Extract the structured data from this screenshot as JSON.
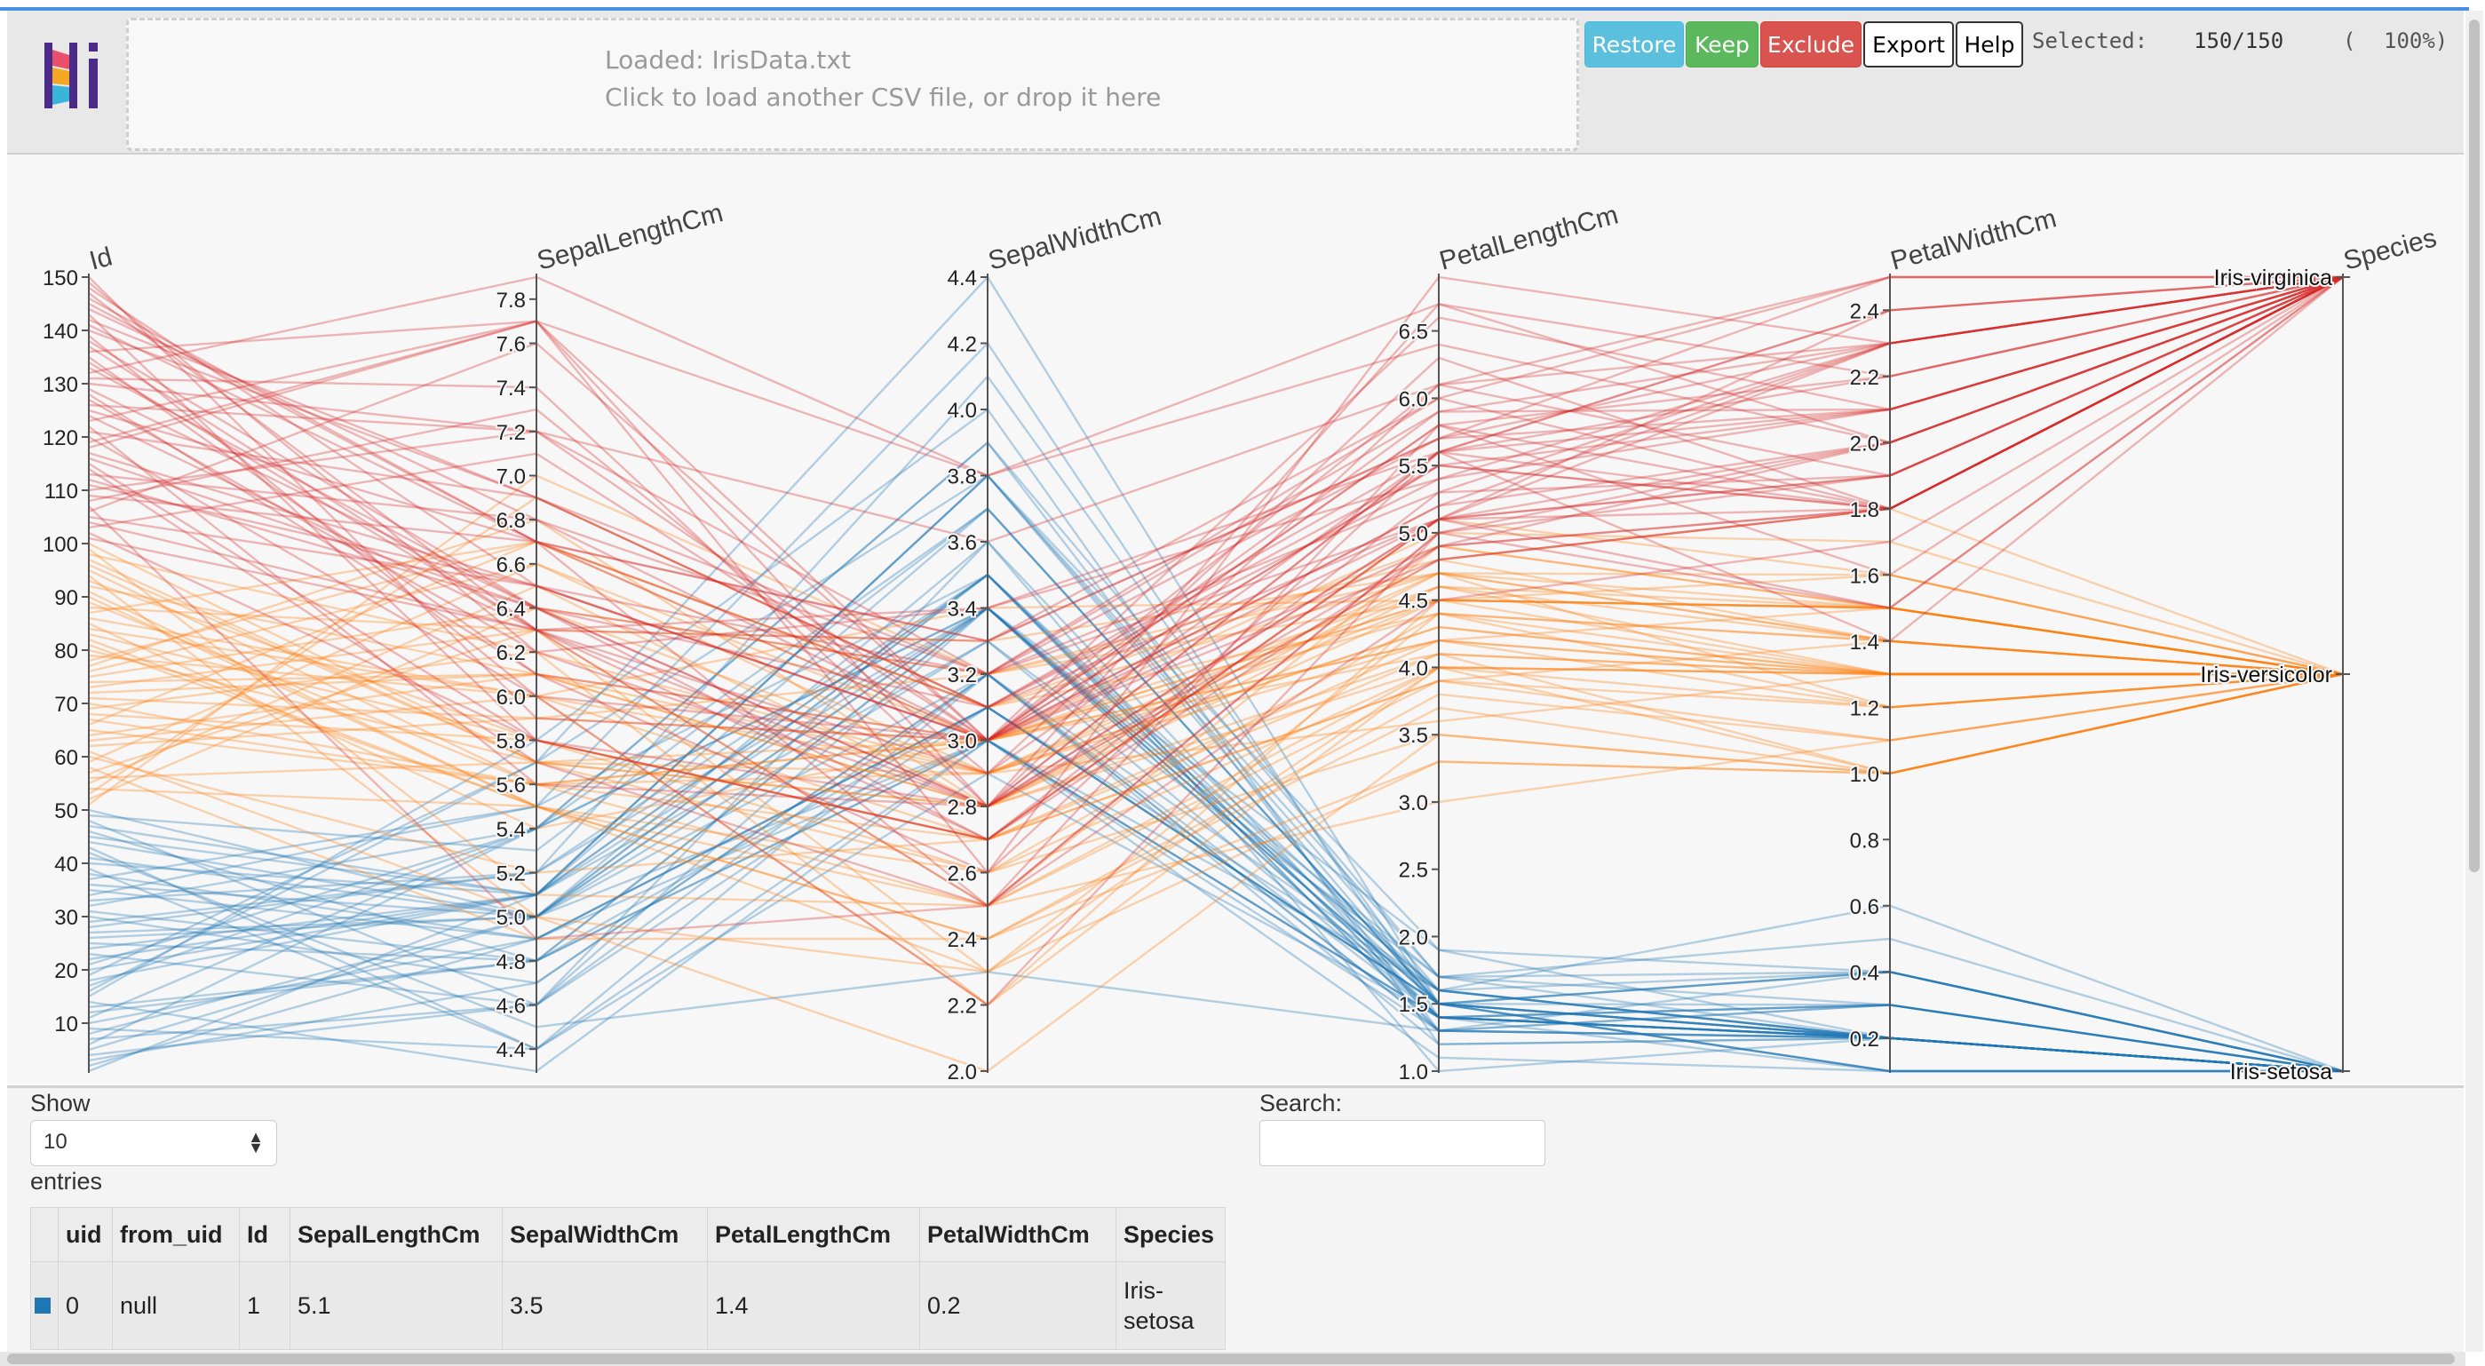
{
  "dropzone": {
    "loaded": "Loaded: IrisData.txt",
    "hint": "Click to load another CSV file, or drop it here"
  },
  "toolbar": {
    "restore": "Restore",
    "keep": "Keep",
    "exclude": "Exclude",
    "export": "Export",
    "help": "Help"
  },
  "selection": {
    "label": "Selected:",
    "count": "150/150",
    "open": "(",
    "pct": "100%)"
  },
  "colors": {
    "setosa": "#1f77b4",
    "versicolor": "#ff7f0e",
    "virginica": "#d62728"
  },
  "chart_data": {
    "type": "parallel-coordinates",
    "axes": [
      {
        "name": "Id",
        "min": 1,
        "max": 150,
        "ticks": [
          10,
          20,
          30,
          40,
          50,
          60,
          70,
          80,
          90,
          100,
          110,
          120,
          130,
          140,
          150
        ],
        "tick_labels": [
          "10",
          "20",
          "30",
          "40",
          "50",
          "60",
          "70",
          "80",
          "90",
          "100",
          "110",
          "120",
          "130",
          "140",
          "150"
        ]
      },
      {
        "name": "SepalLengthCm",
        "min": 4.3,
        "max": 7.9,
        "ticks": [
          4.4,
          4.6,
          4.8,
          5.0,
          5.2,
          5.4,
          5.6,
          5.8,
          6.0,
          6.2,
          6.4,
          6.6,
          6.8,
          7.0,
          7.2,
          7.4,
          7.6,
          7.8
        ],
        "tick_labels": [
          "4.4",
          "4.6",
          "4.8",
          "5.0",
          "5.2",
          "5.4",
          "5.6",
          "5.8",
          "6.0",
          "6.2",
          "6.4",
          "6.6",
          "6.8",
          "7.0",
          "7.2",
          "7.4",
          "7.6",
          "7.8"
        ]
      },
      {
        "name": "SepalWidthCm",
        "min": 2.0,
        "max": 4.4,
        "ticks": [
          2.0,
          2.2,
          2.4,
          2.6,
          2.8,
          3.0,
          3.2,
          3.4,
          3.6,
          3.8,
          4.0,
          4.2,
          4.4
        ],
        "tick_labels": [
          "2.0",
          "2.2",
          "2.4",
          "2.6",
          "2.8",
          "3.0",
          "3.2",
          "3.4",
          "3.6",
          "3.8",
          "4.0",
          "4.2",
          "4.4"
        ]
      },
      {
        "name": "PetalLengthCm",
        "min": 1.0,
        "max": 6.9,
        "ticks": [
          1.0,
          1.5,
          2.0,
          2.5,
          3.0,
          3.5,
          4.0,
          4.5,
          5.0,
          5.5,
          6.0,
          6.5
        ],
        "tick_labels": [
          "1.0",
          "1.5",
          "2.0",
          "2.5",
          "3.0",
          "3.5",
          "4.0",
          "4.5",
          "5.0",
          "5.5",
          "6.0",
          "6.5"
        ]
      },
      {
        "name": "PetalWidthCm",
        "min": 0.1,
        "max": 2.5,
        "ticks": [
          0.2,
          0.4,
          0.6,
          0.8,
          1.0,
          1.2,
          1.4,
          1.6,
          1.8,
          2.0,
          2.2,
          2.4
        ],
        "tick_labels": [
          "0.2",
          "0.4",
          "0.6",
          "0.8",
          "1.0",
          "1.2",
          "1.4",
          "1.6",
          "1.8",
          "2.0",
          "2.2",
          "2.4"
        ]
      },
      {
        "name": "Species",
        "categorical": true,
        "categories": [
          "Iris-setosa",
          "Iris-versicolor",
          "Iris-virginica"
        ]
      }
    ],
    "series": [
      {
        "name": "Iris-setosa",
        "color": "#1f77b4",
        "id_range": [
          1,
          50
        ],
        "sepal_length": [
          5.1,
          4.9,
          4.7,
          4.6,
          5.0,
          5.4,
          4.6,
          5.0,
          4.4,
          4.9,
          5.4,
          4.8,
          4.8,
          4.3,
          5.8,
          5.7,
          5.4,
          5.1,
          5.7,
          5.1,
          5.4,
          5.1,
          4.6,
          5.1,
          4.8,
          5.0,
          5.0,
          5.2,
          5.2,
          4.7,
          4.8,
          5.4,
          5.2,
          5.5,
          4.9,
          5.0,
          5.5,
          4.9,
          4.4,
          5.1,
          5.0,
          4.5,
          4.4,
          5.0,
          5.1,
          4.8,
          5.1,
          4.6,
          5.3,
          5.0
        ],
        "sepal_width": [
          3.5,
          3.0,
          3.2,
          3.1,
          3.6,
          3.9,
          3.4,
          3.4,
          2.9,
          3.1,
          3.7,
          3.4,
          3.0,
          3.0,
          4.0,
          4.4,
          3.9,
          3.5,
          3.8,
          3.8,
          3.4,
          3.7,
          3.6,
          3.3,
          3.4,
          3.0,
          3.4,
          3.5,
          3.4,
          3.2,
          3.1,
          3.4,
          4.1,
          4.2,
          3.1,
          3.2,
          3.5,
          3.1,
          3.0,
          3.4,
          3.5,
          2.3,
          3.2,
          3.5,
          3.8,
          3.0,
          3.8,
          3.2,
          3.7,
          3.3
        ],
        "petal_length": [
          1.4,
          1.4,
          1.3,
          1.5,
          1.4,
          1.7,
          1.4,
          1.5,
          1.4,
          1.5,
          1.5,
          1.6,
          1.4,
          1.1,
          1.2,
          1.5,
          1.3,
          1.4,
          1.7,
          1.5,
          1.7,
          1.5,
          1.0,
          1.7,
          1.9,
          1.6,
          1.6,
          1.5,
          1.4,
          1.6,
          1.6,
          1.5,
          1.5,
          1.4,
          1.5,
          1.2,
          1.3,
          1.5,
          1.3,
          1.5,
          1.3,
          1.3,
          1.3,
          1.6,
          1.9,
          1.4,
          1.6,
          1.4,
          1.5,
          1.4
        ],
        "petal_width": [
          0.2,
          0.2,
          0.2,
          0.2,
          0.2,
          0.4,
          0.3,
          0.2,
          0.2,
          0.1,
          0.2,
          0.2,
          0.1,
          0.1,
          0.2,
          0.4,
          0.4,
          0.3,
          0.3,
          0.3,
          0.2,
          0.4,
          0.2,
          0.5,
          0.2,
          0.2,
          0.4,
          0.2,
          0.2,
          0.2,
          0.2,
          0.4,
          0.1,
          0.2,
          0.1,
          0.2,
          0.2,
          0.1,
          0.2,
          0.2,
          0.3,
          0.3,
          0.2,
          0.6,
          0.4,
          0.3,
          0.2,
          0.2,
          0.2,
          0.2
        ]
      },
      {
        "name": "Iris-versicolor",
        "color": "#ff7f0e",
        "id_range": [
          51,
          100
        ],
        "sepal_length": [
          7.0,
          6.4,
          6.9,
          5.5,
          6.5,
          5.7,
          6.3,
          4.9,
          6.6,
          5.2,
          5.0,
          5.9,
          6.0,
          6.1,
          5.6,
          6.7,
          5.6,
          5.8,
          6.2,
          5.6,
          5.9,
          6.1,
          6.3,
          6.1,
          6.4,
          6.6,
          6.8,
          6.7,
          6.0,
          5.7,
          5.5,
          5.5,
          5.8,
          6.0,
          5.4,
          6.0,
          6.7,
          6.3,
          5.6,
          5.5,
          5.5,
          6.1,
          5.8,
          5.0,
          5.6,
          5.7,
          5.7,
          6.2,
          5.1,
          5.7
        ],
        "sepal_width": [
          3.2,
          3.2,
          3.1,
          2.3,
          2.8,
          2.8,
          3.3,
          2.4,
          2.9,
          2.7,
          2.0,
          3.0,
          2.2,
          2.9,
          2.9,
          3.1,
          3.0,
          2.7,
          2.2,
          2.5,
          3.2,
          2.8,
          2.5,
          2.8,
          2.9,
          3.0,
          2.8,
          3.0,
          2.9,
          2.6,
          2.4,
          2.4,
          2.7,
          2.7,
          3.0,
          3.4,
          3.1,
          2.3,
          3.0,
          2.5,
          2.6,
          3.0,
          2.6,
          2.3,
          2.7,
          3.0,
          2.9,
          2.9,
          2.5,
          2.8
        ],
        "petal_length": [
          4.7,
          4.5,
          4.9,
          4.0,
          4.6,
          4.5,
          4.7,
          3.3,
          4.6,
          3.9,
          3.5,
          4.2,
          4.0,
          4.7,
          3.6,
          4.4,
          4.5,
          4.1,
          4.5,
          3.9,
          4.8,
          4.0,
          4.9,
          4.7,
          4.3,
          4.4,
          4.8,
          5.0,
          4.5,
          3.5,
          3.8,
          3.7,
          3.9,
          5.1,
          4.5,
          4.5,
          4.7,
          4.4,
          4.1,
          4.0,
          4.4,
          4.6,
          4.0,
          3.3,
          4.2,
          4.2,
          4.2,
          4.3,
          3.0,
          4.1
        ],
        "petal_width": [
          1.4,
          1.5,
          1.5,
          1.3,
          1.5,
          1.3,
          1.6,
          1.0,
          1.3,
          1.4,
          1.0,
          1.5,
          1.0,
          1.4,
          1.3,
          1.4,
          1.5,
          1.0,
          1.5,
          1.1,
          1.8,
          1.3,
          1.5,
          1.2,
          1.3,
          1.4,
          1.4,
          1.7,
          1.5,
          1.0,
          1.1,
          1.0,
          1.2,
          1.6,
          1.5,
          1.6,
          1.5,
          1.3,
          1.3,
          1.3,
          1.2,
          1.4,
          1.2,
          1.0,
          1.3,
          1.2,
          1.3,
          1.3,
          1.1,
          1.3
        ]
      },
      {
        "name": "Iris-virginica",
        "color": "#d62728",
        "id_range": [
          101,
          150
        ],
        "sepal_length": [
          6.3,
          5.8,
          7.1,
          6.3,
          6.5,
          7.6,
          4.9,
          7.3,
          6.7,
          7.2,
          6.5,
          6.4,
          6.8,
          5.7,
          5.8,
          6.4,
          6.5,
          7.7,
          7.7,
          6.0,
          6.9,
          5.6,
          7.7,
          6.3,
          6.7,
          7.2,
          6.2,
          6.1,
          6.4,
          7.2,
          7.4,
          7.9,
          6.4,
          6.3,
          6.1,
          7.7,
          6.3,
          6.4,
          6.0,
          6.9,
          6.7,
          6.9,
          5.8,
          6.8,
          6.7,
          6.7,
          6.3,
          6.5,
          6.2,
          5.9
        ],
        "sepal_width": [
          3.3,
          2.7,
          3.0,
          2.9,
          3.0,
          3.0,
          2.5,
          2.9,
          2.5,
          3.6,
          3.2,
          2.7,
          3.0,
          2.5,
          2.8,
          3.2,
          3.0,
          3.8,
          2.6,
          2.2,
          3.2,
          2.8,
          2.8,
          2.7,
          3.3,
          3.2,
          2.8,
          3.0,
          2.8,
          3.0,
          2.8,
          3.8,
          2.8,
          2.8,
          2.6,
          3.0,
          3.4,
          3.1,
          3.0,
          3.1,
          3.1,
          3.1,
          2.7,
          3.2,
          3.3,
          3.0,
          2.5,
          3.0,
          3.4,
          3.0
        ],
        "petal_length": [
          6.0,
          5.1,
          5.9,
          5.6,
          5.8,
          6.6,
          4.5,
          6.3,
          5.8,
          6.1,
          5.1,
          5.3,
          5.5,
          5.0,
          5.1,
          5.3,
          5.5,
          6.7,
          6.9,
          5.0,
          5.7,
          4.9,
          6.7,
          4.9,
          5.7,
          6.0,
          4.8,
          4.9,
          5.6,
          5.8,
          6.1,
          6.4,
          5.6,
          5.1,
          5.6,
          6.1,
          5.6,
          5.5,
          4.8,
          5.4,
          5.6,
          5.1,
          5.1,
          5.9,
          5.7,
          5.2,
          5.0,
          5.2,
          5.4,
          5.1
        ],
        "petal_width": [
          2.5,
          1.9,
          2.1,
          1.8,
          2.2,
          2.1,
          1.7,
          1.8,
          1.8,
          2.5,
          2.0,
          1.9,
          2.1,
          2.0,
          2.4,
          2.3,
          1.8,
          2.2,
          2.3,
          1.5,
          2.3,
          2.0,
          2.0,
          1.8,
          2.1,
          1.8,
          1.8,
          1.8,
          2.1,
          1.6,
          1.9,
          2.0,
          2.2,
          1.5,
          1.4,
          2.3,
          2.4,
          1.8,
          1.8,
          2.1,
          2.4,
          2.3,
          1.9,
          2.3,
          2.5,
          2.3,
          1.9,
          2.0,
          2.3,
          1.8
        ]
      }
    ]
  },
  "table_controls": {
    "show_label": "Show",
    "show_value": "10",
    "entries_label": "entries",
    "search_label": "Search:"
  },
  "table": {
    "columns": [
      "uid",
      "from_uid",
      "Id",
      "SepalLengthCm",
      "SepalWidthCm",
      "PetalLengthCm",
      "PetalWidthCm",
      "Species"
    ],
    "rows": [
      [
        "0",
        "null",
        "1",
        "5.1",
        "3.5",
        "1.4",
        "0.2",
        "Iris-setosa"
      ]
    ]
  }
}
